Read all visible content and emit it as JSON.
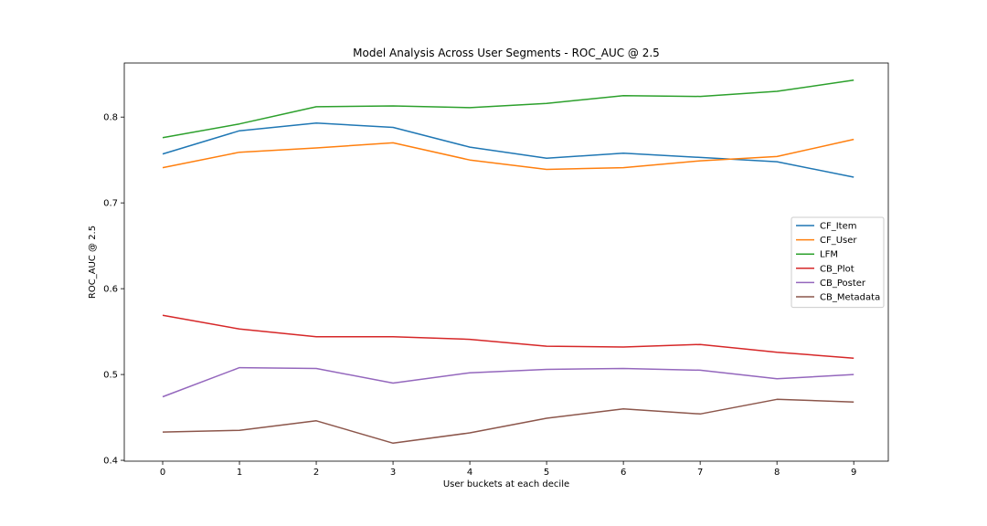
{
  "chart_data": {
    "type": "line",
    "title": "Model Analysis Across User Segments - ROC_AUC @ 2.5",
    "xlabel": "User buckets at each decile",
    "ylabel": "ROC_AUC @ 2.5",
    "x": [
      0,
      1,
      2,
      3,
      4,
      5,
      6,
      7,
      8,
      9
    ],
    "xlim": [
      -0.5,
      9.45
    ],
    "ylim": [
      0.399,
      0.863
    ],
    "yticks": [
      0.4,
      0.5,
      0.6,
      0.7,
      0.8
    ],
    "ytick_labels": [
      "0.4",
      "0.5",
      "0.6",
      "0.7",
      "0.8"
    ],
    "xtick_labels": [
      "0",
      "1",
      "2",
      "3",
      "4",
      "5",
      "6",
      "7",
      "8",
      "9"
    ],
    "grid": false,
    "legend_position": "center-right",
    "series": [
      {
        "name": "CF_Item",
        "color": "#1f77b4",
        "values": [
          0.757,
          0.784,
          0.793,
          0.788,
          0.765,
          0.752,
          0.758,
          0.753,
          0.748,
          0.73
        ]
      },
      {
        "name": "CF_User",
        "color": "#ff7f0e",
        "values": [
          0.741,
          0.759,
          0.764,
          0.77,
          0.75,
          0.739,
          0.741,
          0.749,
          0.754,
          0.774
        ]
      },
      {
        "name": "LFM",
        "color": "#2ca02c",
        "values": [
          0.776,
          0.792,
          0.812,
          0.813,
          0.811,
          0.816,
          0.825,
          0.824,
          0.83,
          0.843
        ]
      },
      {
        "name": "CB_Plot",
        "color": "#d62728",
        "values": [
          0.569,
          0.553,
          0.544,
          0.544,
          0.541,
          0.533,
          0.532,
          0.535,
          0.526,
          0.519
        ]
      },
      {
        "name": "CB_Poster",
        "color": "#9467bd",
        "values": [
          0.474,
          0.508,
          0.507,
          0.49,
          0.502,
          0.506,
          0.507,
          0.505,
          0.495,
          0.5
        ]
      },
      {
        "name": "CB_Metadata",
        "color": "#8c564b",
        "values": [
          0.433,
          0.435,
          0.446,
          0.42,
          0.432,
          0.449,
          0.46,
          0.454,
          0.471,
          0.468
        ]
      }
    ]
  }
}
